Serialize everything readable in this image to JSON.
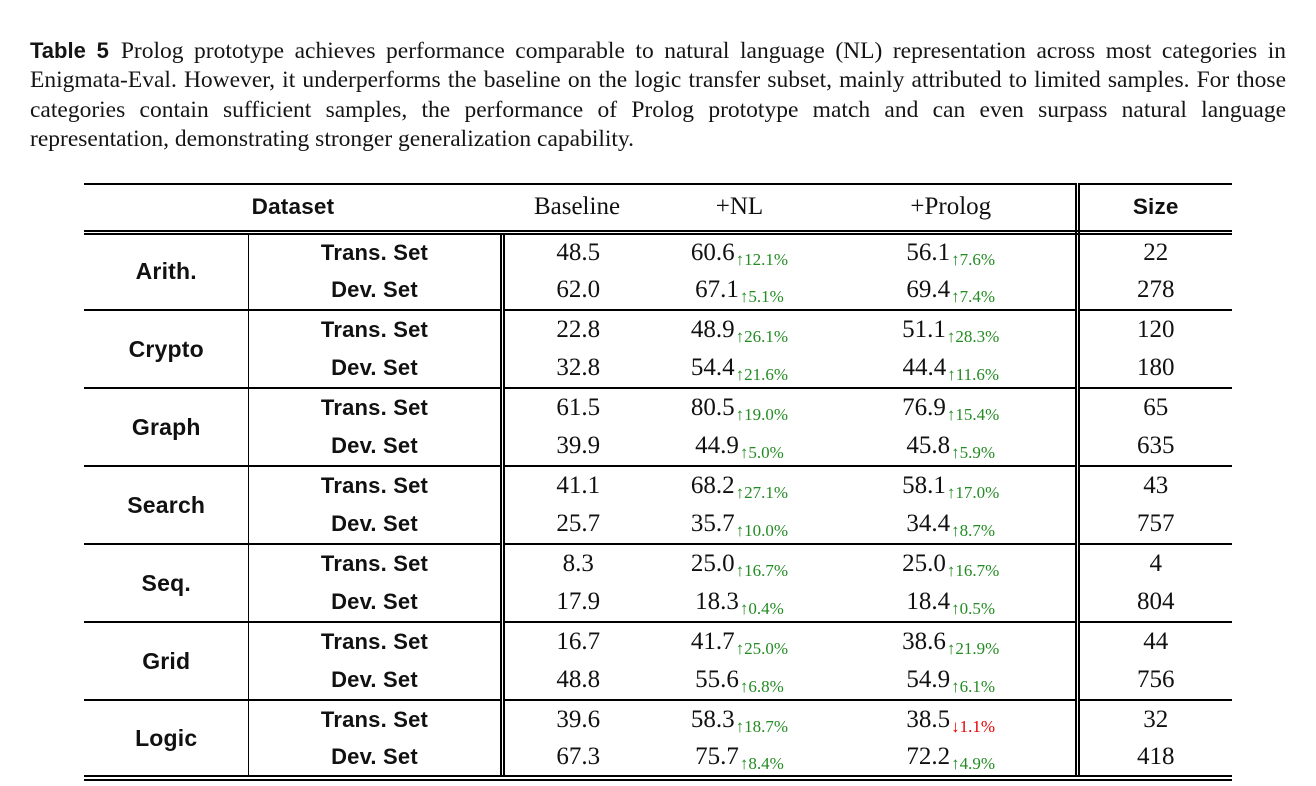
{
  "caption": {
    "label": "Table 5",
    "text": "Prolog prototype achieves performance comparable to natural language (NL) representation across most categories in Enigmata-Eval. However, it underperforms the baseline on the logic transfer subset, mainly attributed to limited samples. For those categories contain sufficient samples, the performance of Prolog prototype match and can even surpass natural language representation, demonstrating stronger generalization capability."
  },
  "table": {
    "header": {
      "dataset": "Dataset",
      "baseline": "Baseline",
      "nl": "+NL",
      "prolog": "+Prolog",
      "size": "Size"
    },
    "colors": {
      "increase": "#228B22",
      "decrease": "#E60000"
    },
    "groups": [
      {
        "category": "Arith.",
        "rows": [
          {
            "set": "Trans. Set",
            "baseline": "48.5",
            "nl": "60.6",
            "nl_delta": "↑12.1%",
            "nl_dir": "up",
            "prolog": "56.1",
            "prolog_delta": "↑7.6%",
            "prolog_dir": "up",
            "size": "22"
          },
          {
            "set": "Dev. Set",
            "baseline": "62.0",
            "nl": "67.1",
            "nl_delta": "↑5.1%",
            "nl_dir": "up",
            "prolog": "69.4",
            "prolog_delta": "↑7.4%",
            "prolog_dir": "up",
            "size": "278"
          }
        ]
      },
      {
        "category": "Crypto",
        "rows": [
          {
            "set": "Trans. Set",
            "baseline": "22.8",
            "nl": "48.9",
            "nl_delta": "↑26.1%",
            "nl_dir": "up",
            "prolog": "51.1",
            "prolog_delta": "↑28.3%",
            "prolog_dir": "up",
            "size": "120"
          },
          {
            "set": "Dev. Set",
            "baseline": "32.8",
            "nl": "54.4",
            "nl_delta": "↑21.6%",
            "nl_dir": "up",
            "prolog": "44.4",
            "prolog_delta": "↑11.6%",
            "prolog_dir": "up",
            "size": "180"
          }
        ]
      },
      {
        "category": "Graph",
        "rows": [
          {
            "set": "Trans. Set",
            "baseline": "61.5",
            "nl": "80.5",
            "nl_delta": "↑19.0%",
            "nl_dir": "up",
            "prolog": "76.9",
            "prolog_delta": "↑15.4%",
            "prolog_dir": "up",
            "size": "65"
          },
          {
            "set": "Dev. Set",
            "baseline": "39.9",
            "nl": "44.9",
            "nl_delta": "↑5.0%",
            "nl_dir": "up",
            "prolog": "45.8",
            "prolog_delta": "↑5.9%",
            "prolog_dir": "up",
            "size": "635"
          }
        ]
      },
      {
        "category": "Search",
        "rows": [
          {
            "set": "Trans. Set",
            "baseline": "41.1",
            "nl": "68.2",
            "nl_delta": "↑27.1%",
            "nl_dir": "up",
            "prolog": "58.1",
            "prolog_delta": "↑17.0%",
            "prolog_dir": "up",
            "size": "43"
          },
          {
            "set": "Dev. Set",
            "baseline": "25.7",
            "nl": "35.7",
            "nl_delta": "↑10.0%",
            "nl_dir": "up",
            "prolog": "34.4",
            "prolog_delta": "↑8.7%",
            "prolog_dir": "up",
            "size": "757"
          }
        ]
      },
      {
        "category": "Seq.",
        "rows": [
          {
            "set": "Trans. Set",
            "baseline": "8.3",
            "nl": "25.0",
            "nl_delta": "↑16.7%",
            "nl_dir": "up",
            "prolog": "25.0",
            "prolog_delta": "↑16.7%",
            "prolog_dir": "up",
            "size": "4"
          },
          {
            "set": "Dev. Set",
            "baseline": "17.9",
            "nl": "18.3",
            "nl_delta": "↑0.4%",
            "nl_dir": "up",
            "prolog": "18.4",
            "prolog_delta": "↑0.5%",
            "prolog_dir": "up",
            "size": "804"
          }
        ]
      },
      {
        "category": "Grid",
        "rows": [
          {
            "set": "Trans. Set",
            "baseline": "16.7",
            "nl": "41.7",
            "nl_delta": "↑25.0%",
            "nl_dir": "up",
            "prolog": "38.6",
            "prolog_delta": "↑21.9%",
            "prolog_dir": "up",
            "size": "44"
          },
          {
            "set": "Dev. Set",
            "baseline": "48.8",
            "nl": "55.6",
            "nl_delta": "↑6.8%",
            "nl_dir": "up",
            "prolog": "54.9",
            "prolog_delta": "↑6.1%",
            "prolog_dir": "up",
            "size": "756"
          }
        ]
      },
      {
        "category": "Logic",
        "rows": [
          {
            "set": "Trans. Set",
            "baseline": "39.6",
            "nl": "58.3",
            "nl_delta": "↑18.7%",
            "nl_dir": "up",
            "prolog": "38.5",
            "prolog_delta": "↓1.1%",
            "prolog_dir": "down",
            "size": "32"
          },
          {
            "set": "Dev. Set",
            "baseline": "67.3",
            "nl": "75.7",
            "nl_delta": "↑8.4%",
            "nl_dir": "up",
            "prolog": "72.2",
            "prolog_delta": "↑4.9%",
            "prolog_dir": "up",
            "size": "418"
          }
        ]
      }
    ]
  }
}
